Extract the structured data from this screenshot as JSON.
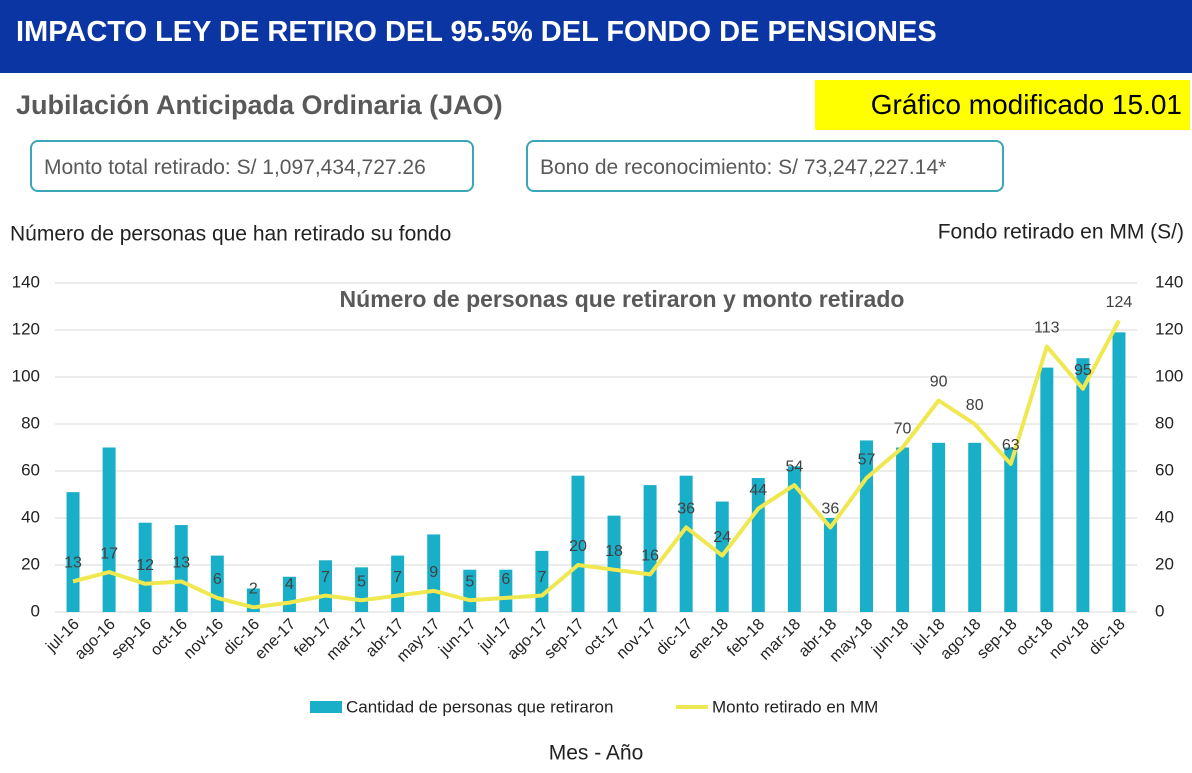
{
  "header": {
    "title": "IMPACTO LEY DE RETIRO DEL 95.5% DEL FONDO DE PENSIONES",
    "subtitle": "Jubilación Anticipada Ordinaria (JAO)",
    "badge": "Gráfico modificado 15.01"
  },
  "info_boxes": [
    "Monto total retirado: S/ 1,097,434,727.26",
    "Bono de reconocimiento: S/ 73,247,227.14*"
  ],
  "chart_data": {
    "type": "bar-line",
    "title": "Número de personas que retiraron y monto retirado",
    "y_label": "Número de personas que han retirado su fondo",
    "y2_label": "Fondo retirado en MM (S/)",
    "x_label": "Mes - Año",
    "categories": [
      "jul-16",
      "ago-16",
      "sep-16",
      "oct-16",
      "nov-16",
      "dic-16",
      "ene-17",
      "feb-17",
      "mar-17",
      "abr-17",
      "may-17",
      "jun-17",
      "jul-17",
      "ago-17",
      "sep-17",
      "oct-17",
      "nov-17",
      "dic-17",
      "ene-18",
      "feb-18",
      "mar-18",
      "abr-18",
      "may-18",
      "jun-18",
      "jul-18",
      "ago-18",
      "sep-18",
      "oct-18",
      "nov-18",
      "dic-18"
    ],
    "series": [
      {
        "name": "Cantidad de personas que retiraron",
        "type": "bar",
        "color": "#1aafc8",
        "axis": "y",
        "values": [
          51,
          70,
          38,
          37,
          24,
          10,
          15,
          22,
          19,
          24,
          33,
          18,
          18,
          26,
          58,
          41,
          54,
          58,
          47,
          57,
          62,
          40,
          73,
          70,
          72,
          72,
          70,
          104,
          108,
          119
        ]
      },
      {
        "name": "Monto retirado en MM",
        "type": "line",
        "color": "#f0e850",
        "axis": "y2",
        "show_labels": true,
        "values": [
          13,
          17,
          12,
          13,
          6,
          2,
          4,
          7,
          5,
          7,
          9,
          5,
          6,
          7,
          20,
          18,
          16,
          36,
          24,
          44,
          54,
          36,
          57,
          70,
          90,
          80,
          63,
          113,
          95,
          124
        ]
      }
    ],
    "ylim": [
      0,
      140
    ],
    "yticks": [
      0,
      20,
      40,
      60,
      80,
      100,
      120,
      140
    ],
    "y2lim": [
      0,
      140
    ],
    "y2ticks": [
      0,
      20,
      40,
      60,
      80,
      100,
      120,
      140
    ],
    "grid": true,
    "legend": "bottom"
  }
}
